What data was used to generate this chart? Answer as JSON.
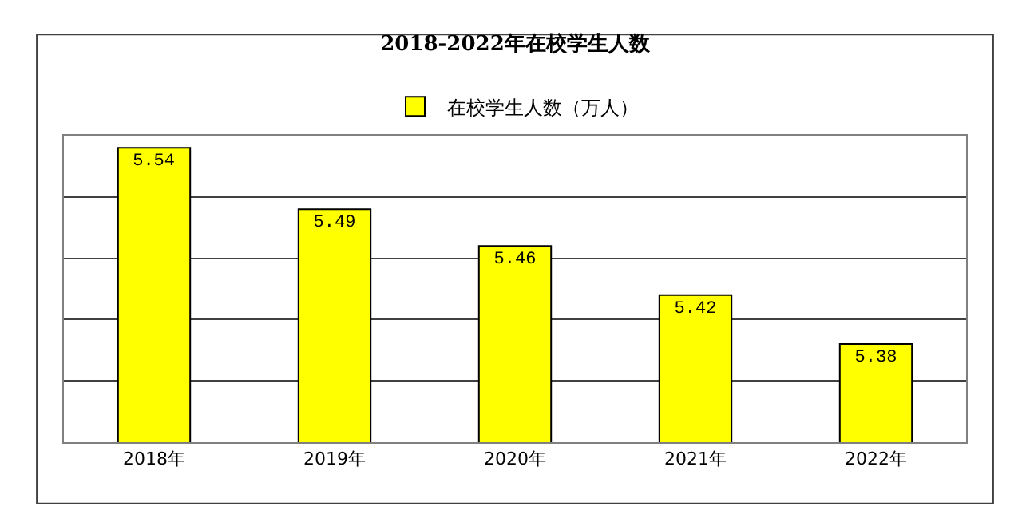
{
  "chart_data": {
    "type": "bar",
    "title": "2018-2022年在校学生人数",
    "categories": [
      "2018年",
      "2019年",
      "2020年",
      "2021年",
      "2022年"
    ],
    "series": [
      {
        "name": "在校学生人数（万人）",
        "color": "#ffff00",
        "values": [
          5.54,
          5.49,
          5.46,
          5.42,
          5.38
        ]
      }
    ],
    "ylim": [
      5.3,
      5.55
    ],
    "yticks": [
      {
        "value": 5.3,
        "label": null
      },
      {
        "value": 5.35,
        "label": null
      },
      {
        "value": 5.4,
        "label": null
      },
      {
        "value": 5.45,
        "label": null
      },
      {
        "value": 5.5,
        "label": null
      },
      {
        "value": 5.55,
        "label": null
      }
    ],
    "tick_labels": "x",
    "grid": "y",
    "legend": "top",
    "data_labels": true
  }
}
